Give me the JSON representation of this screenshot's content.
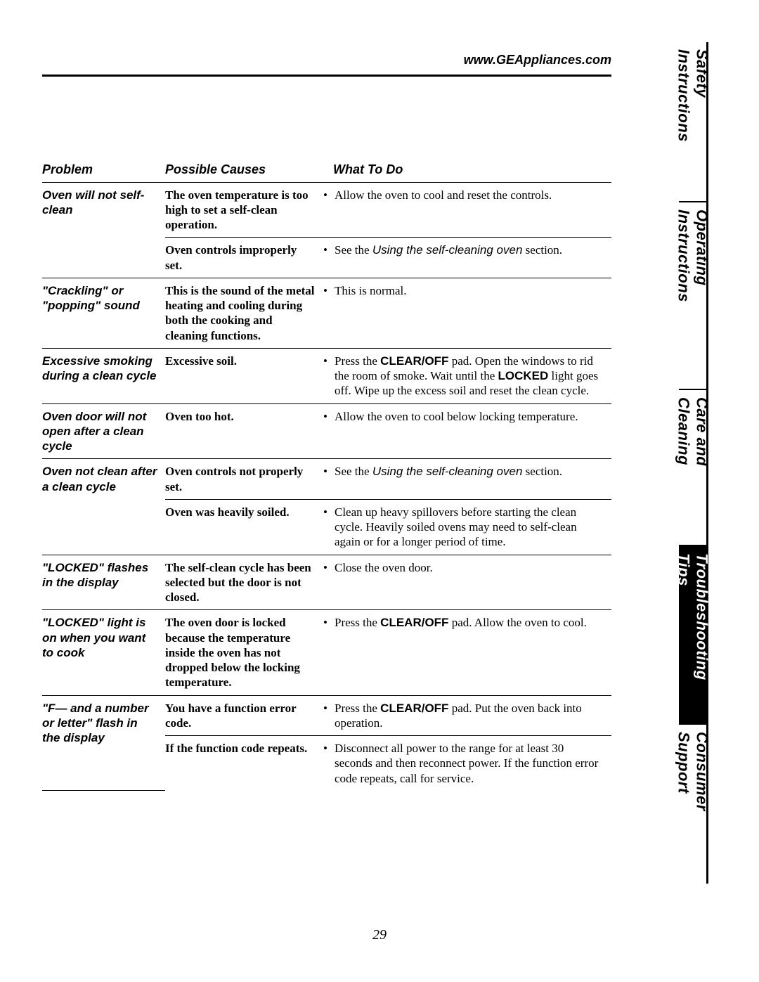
{
  "header": {
    "url": "www.GEAppliances.com"
  },
  "columns": {
    "problem": "Problem",
    "causes": "Possible Causes",
    "what": "What To Do"
  },
  "sidebar_tabs": [
    {
      "label": "Safety Instructions",
      "active": false
    },
    {
      "label": "Operating Instructions",
      "active": false
    },
    {
      "label": "Care and Cleaning",
      "active": false
    },
    {
      "label": "Troubleshooting Tips",
      "active": true
    },
    {
      "label": "Consumer Support",
      "active": false
    }
  ],
  "page_number": "29",
  "rows": [
    {
      "problem": "Oven will not self-clean",
      "sub": [
        {
          "cause": "The oven temperature is too high to set a self-clean operation.",
          "what_parts": [
            {
              "t": "Allow the oven to cool and reset the controls."
            }
          ],
          "hr": true
        },
        {
          "cause": "Oven controls improperly set.",
          "what_parts": [
            {
              "t": "See the "
            },
            {
              "t": "Using the self-cleaning oven",
              "cls": "i sans-condense"
            },
            {
              "t": " section."
            }
          ],
          "hr": true
        }
      ]
    },
    {
      "problem": "\"Crackling\" or \"popping\" sound",
      "sub": [
        {
          "cause": "This is the sound of the metal heating and cooling during both the cooking and cleaning functions.",
          "what_parts": [
            {
              "t": "This is normal."
            }
          ],
          "hr": true
        }
      ]
    },
    {
      "problem": "Excessive smoking during a clean cycle",
      "sub": [
        {
          "cause": "Excessive soil.",
          "what_parts": [
            {
              "t": "Press the "
            },
            {
              "t": "CLEAR/OFF",
              "cls": "b sans-condense"
            },
            {
              "t": " pad. Open the windows to rid the room of smoke. Wait until the "
            },
            {
              "t": "LOCKED",
              "cls": "b sans-condense"
            },
            {
              "t": " light goes off. Wipe up the excess soil and reset the clean cycle."
            }
          ],
          "hr": true
        }
      ]
    },
    {
      "problem": "Oven door will not open after a clean cycle",
      "sub": [
        {
          "cause": "Oven too hot.",
          "what_parts": [
            {
              "t": "Allow the oven to cool below locking temperature."
            }
          ],
          "hr": true
        }
      ]
    },
    {
      "problem": "Oven not clean after a clean cycle",
      "sub": [
        {
          "cause": "Oven controls not properly set.",
          "what_parts": [
            {
              "t": "See the "
            },
            {
              "t": "Using the self-cleaning oven",
              "cls": "i sans-condense"
            },
            {
              "t": " section."
            }
          ],
          "hr": true
        },
        {
          "cause": "Oven was heavily soiled.",
          "what_parts": [
            {
              "t": "Clean up heavy spillovers before starting the clean cycle. Heavily soiled ovens may need to self-clean again or for a longer period of time."
            }
          ],
          "hr": true
        }
      ]
    },
    {
      "problem": "\"LOCKED\" flashes in the display",
      "sub": [
        {
          "cause": "The self-clean cycle has been selected but the door is not closed.",
          "what_parts": [
            {
              "t": "Close the oven door."
            }
          ],
          "hr": true
        }
      ]
    },
    {
      "problem": "\"LOCKED\" light is on when you want to cook",
      "sub": [
        {
          "cause": "The oven door is locked because the temperature inside the oven has not dropped below the locking temperature.",
          "what_parts": [
            {
              "t": "Press the "
            },
            {
              "t": "CLEAR/OFF",
              "cls": "b sans-condense"
            },
            {
              "t": " pad. Allow the oven to cool."
            }
          ],
          "hr": true
        }
      ]
    },
    {
      "problem": "\"F— and a number or letter\" flash in the display",
      "sub": [
        {
          "cause": "You have a function error code.",
          "what_parts": [
            {
              "t": "Press the "
            },
            {
              "t": "CLEAR/OFF",
              "cls": "b sans-condense"
            },
            {
              "t": " pad. Put the oven back into operation."
            }
          ],
          "hr": true
        },
        {
          "cause": "If the function code repeats.",
          "what_parts": [
            {
              "t": "Disconnect all power to the range for at least 30 seconds and then reconnect power. If the function error code repeats, call for service."
            }
          ],
          "hr": false
        }
      ]
    }
  ]
}
